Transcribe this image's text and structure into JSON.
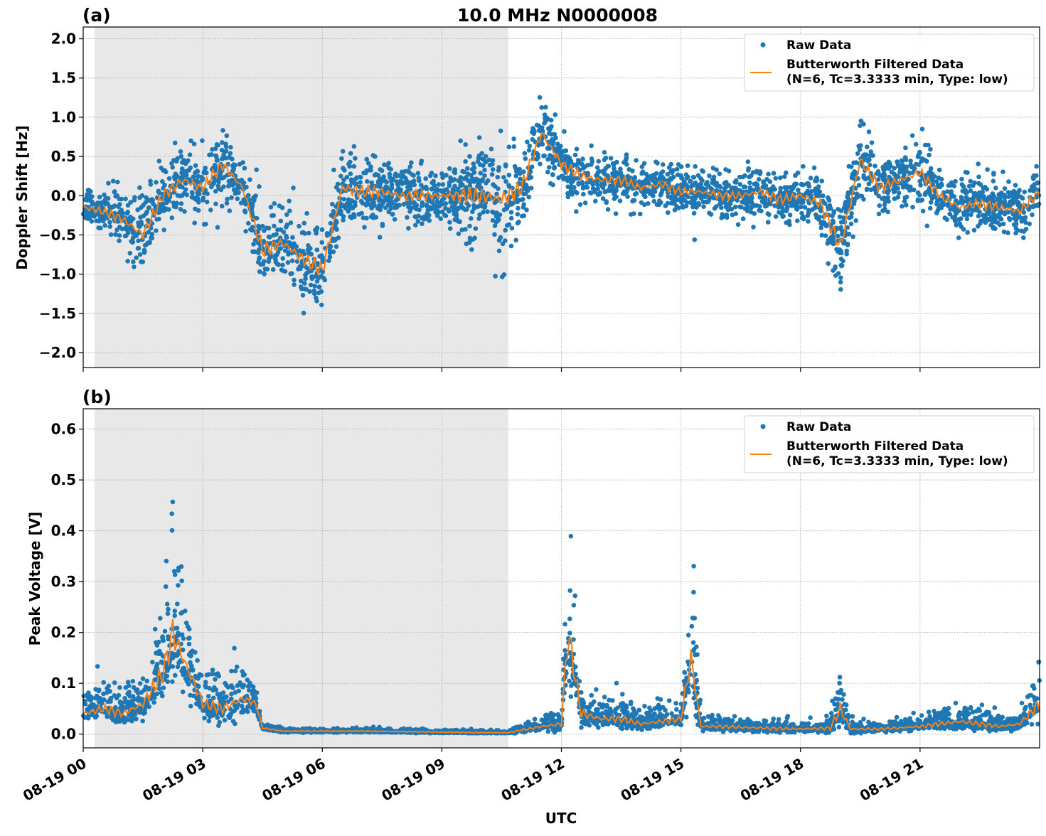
{
  "chart_data": [
    {
      "type": "scatter",
      "panel_label": "(a)",
      "title": "10.0 MHz N0000008",
      "xlabel": "",
      "ylabel": "Doppler Shift [Hz]",
      "xlim": [
        "08-19 00:00",
        "08-20 00:00"
      ],
      "ylim": [
        -2.19,
        2.15
      ],
      "yticks": [
        -2.0,
        -1.5,
        -1.0,
        -0.5,
        0.0,
        0.5,
        1.0,
        1.5,
        2.0
      ],
      "ytick_labels": [
        "−2.0",
        "−1.5",
        "−1.0",
        "−0.5",
        "0.0",
        "0.5",
        "1.0",
        "1.5",
        "2.0"
      ],
      "grid": true,
      "legend_placement": "top-right",
      "shaded_span": [
        "08-19 00:17",
        "08-19 10:40"
      ],
      "colors": {
        "raw": "#1f77b4",
        "filtered": "#ff7f0e",
        "shade": "#e8e8e8"
      },
      "series": [
        {
          "name": "Raw Data",
          "style": "dots",
          "x": [
            "00:00",
            "00:30",
            "01:00",
            "01:30",
            "02:00",
            "02:30",
            "03:00",
            "03:30",
            "04:00",
            "04:30",
            "05:00",
            "05:30",
            "06:00",
            "06:30",
            "07:00",
            "07:30",
            "08:00",
            "08:30",
            "09:00",
            "09:30",
            "10:00",
            "10:30",
            "11:00",
            "11:30",
            "12:00",
            "12:30",
            "13:00",
            "13:30",
            "14:00",
            "14:30",
            "15:00",
            "15:30",
            "16:00",
            "16:30",
            "17:00",
            "17:30",
            "18:00",
            "18:30",
            "19:00",
            "19:30",
            "20:00",
            "20:30",
            "21:00",
            "21:30",
            "22:00",
            "22:30",
            "23:00",
            "23:30",
            "24:00"
          ],
          "spread": [
            0.25,
            0.25,
            0.3,
            0.45,
            0.35,
            0.4,
            0.3,
            0.4,
            0.3,
            0.45,
            0.45,
            0.45,
            0.45,
            0.4,
            0.4,
            0.35,
            0.35,
            0.3,
            0.3,
            0.45,
            0.55,
            0.7,
            0.45,
            0.4,
            0.35,
            0.3,
            0.3,
            0.3,
            0.25,
            0.25,
            0.25,
            0.25,
            0.25,
            0.25,
            0.25,
            0.3,
            0.3,
            0.35,
            0.5,
            0.5,
            0.3,
            0.3,
            0.35,
            0.25,
            0.3,
            0.3,
            0.3,
            0.3,
            0.3
          ]
        },
        {
          "name": "Butterworth Filtered Data\n(N=6, Tc=3.3333 min, Type: low)",
          "style": "line",
          "x": [
            "00:00",
            "00:30",
            "01:00",
            "01:30",
            "02:00",
            "02:30",
            "03:00",
            "03:30",
            "04:00",
            "04:30",
            "05:00",
            "05:30",
            "06:00",
            "06:30",
            "07:00",
            "07:30",
            "08:00",
            "08:30",
            "09:00",
            "09:30",
            "10:00",
            "10:30",
            "11:00",
            "11:30",
            "12:00",
            "12:30",
            "13:00",
            "13:30",
            "14:00",
            "14:30",
            "15:00",
            "15:30",
            "16:00",
            "16:30",
            "17:00",
            "17:30",
            "18:00",
            "18:30",
            "19:00",
            "19:30",
            "20:00",
            "20:30",
            "21:00",
            "21:30",
            "22:00",
            "22:30",
            "23:00",
            "23:30",
            "24:00"
          ],
          "y": [
            -0.15,
            -0.2,
            -0.3,
            -0.5,
            0.0,
            0.2,
            0.1,
            0.4,
            0.1,
            -0.7,
            -0.6,
            -0.8,
            -0.95,
            0.1,
            0.05,
            0.05,
            0.0,
            0.0,
            0.0,
            0.0,
            0.0,
            -0.05,
            0.1,
            0.8,
            0.4,
            0.25,
            0.2,
            0.2,
            0.1,
            0.15,
            0.05,
            0.05,
            0.0,
            0.0,
            0.05,
            -0.05,
            0.0,
            -0.1,
            -0.65,
            0.45,
            0.1,
            0.2,
            0.3,
            0.0,
            -0.15,
            -0.1,
            -0.15,
            -0.2,
            0.05
          ]
        }
      ],
      "legend": {
        "raw_label": "Raw Data",
        "filtered_label_1": "Butterworth Filtered Data",
        "filtered_label_2": "(N=6, Tc=3.3333 min, Type: low)"
      }
    },
    {
      "type": "scatter",
      "panel_label": "(b)",
      "xlabel": "UTC",
      "ylabel": "Peak Voltage [V]",
      "xlim": [
        "08-19 00:00",
        "08-20 00:00"
      ],
      "ylim": [
        -0.027,
        0.64
      ],
      "yticks": [
        0.0,
        0.1,
        0.2,
        0.3,
        0.4,
        0.5,
        0.6
      ],
      "ytick_labels": [
        "0.0",
        "0.1",
        "0.2",
        "0.3",
        "0.4",
        "0.5",
        "0.6"
      ],
      "xticks": [
        "08-19 00",
        "08-19 03",
        "08-19 06",
        "08-19 09",
        "08-19 12",
        "08-19 15",
        "08-19 18",
        "08-19 21"
      ],
      "grid": true,
      "legend_placement": "top-right",
      "shaded_span": [
        "08-19 00:17",
        "08-19 10:40"
      ],
      "colors": {
        "raw": "#1f77b4",
        "filtered": "#ff7f0e",
        "shade": "#e8e8e8"
      },
      "series": [
        {
          "name": "Raw Data",
          "style": "dots",
          "x": [
            "00:00",
            "00:30",
            "01:00",
            "01:30",
            "02:00",
            "02:15",
            "02:30",
            "03:00",
            "03:30",
            "04:00",
            "04:20",
            "04:30",
            "05:00",
            "06:00",
            "07:00",
            "08:00",
            "09:00",
            "10:00",
            "10:40",
            "11:00",
            "11:30",
            "12:00",
            "12:10",
            "12:30",
            "13:00",
            "13:30",
            "14:00",
            "14:30",
            "15:00",
            "15:15",
            "15:30",
            "16:00",
            "17:00",
            "18:00",
            "18:45",
            "19:00",
            "19:15",
            "20:00",
            "21:00",
            "22:00",
            "22:30",
            "23:00",
            "23:30",
            "24:00"
          ],
          "spread": [
            0.04,
            0.05,
            0.05,
            0.07,
            0.12,
            0.25,
            0.14,
            0.06,
            0.07,
            0.07,
            0.03,
            0.008,
            0.006,
            0.006,
            0.005,
            0.005,
            0.005,
            0.004,
            0.004,
            0.01,
            0.02,
            0.03,
            0.2,
            0.06,
            0.04,
            0.04,
            0.03,
            0.035,
            0.03,
            0.18,
            0.02,
            0.02,
            0.02,
            0.015,
            0.02,
            0.08,
            0.02,
            0.015,
            0.02,
            0.035,
            0.03,
            0.02,
            0.02,
            0.08
          ]
        },
        {
          "name": "Butterworth Filtered Data\n(N=6, Tc=3.3333 min, Type: low)",
          "style": "line",
          "x": [
            "00:00",
            "00:30",
            "01:00",
            "01:30",
            "02:00",
            "02:15",
            "02:30",
            "03:00",
            "03:30",
            "04:00",
            "04:20",
            "04:30",
            "05:00",
            "06:00",
            "07:00",
            "08:00",
            "09:00",
            "10:00",
            "10:40",
            "11:00",
            "11:30",
            "12:00",
            "12:10",
            "12:30",
            "13:00",
            "13:30",
            "14:00",
            "14:30",
            "15:00",
            "15:15",
            "15:30",
            "16:00",
            "17:00",
            "18:00",
            "18:45",
            "19:00",
            "19:15",
            "20:00",
            "21:00",
            "22:00",
            "22:30",
            "23:00",
            "23:30",
            "24:00"
          ],
          "y": [
            0.04,
            0.05,
            0.04,
            0.06,
            0.12,
            0.2,
            0.15,
            0.06,
            0.05,
            0.07,
            0.06,
            0.012,
            0.006,
            0.006,
            0.006,
            0.005,
            0.004,
            0.003,
            0.003,
            0.008,
            0.015,
            0.02,
            0.2,
            0.04,
            0.03,
            0.03,
            0.02,
            0.025,
            0.03,
            0.15,
            0.015,
            0.015,
            0.012,
            0.01,
            0.012,
            0.05,
            0.01,
            0.01,
            0.015,
            0.025,
            0.02,
            0.015,
            0.02,
            0.06
          ]
        }
      ],
      "legend": {
        "raw_label": "Raw Data",
        "filtered_label_1": "Butterworth Filtered Data",
        "filtered_label_2": "(N=6, Tc=3.3333 min, Type: low)"
      }
    }
  ]
}
